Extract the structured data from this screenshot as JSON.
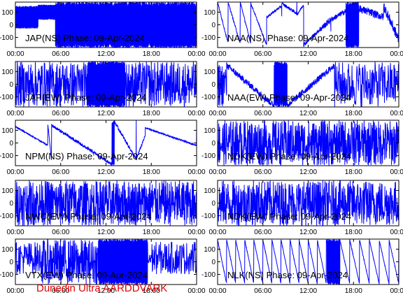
{
  "footer": {
    "credit": "Dunedin Ultra AARDDVARK"
  },
  "colors": {
    "trace": "#0000ff",
    "frame": "#000000",
    "caption": "#000000",
    "credit": "#e00000",
    "background": "#ffffff"
  },
  "x_ticks": [
    "00:00",
    "06:00",
    "12:00",
    "18:00",
    "00:00"
  ],
  "y_ticks": [
    100,
    0,
    -100
  ],
  "chart_data": [
    {
      "type": "line",
      "caption": "JAP(NS) Phase: 09-Apr-2024",
      "xlim": [
        0,
        24
      ],
      "ylim": [
        -180,
        180
      ],
      "grid": false,
      "series_color": "#0000ff",
      "segments": [
        {
          "from": 0.0,
          "to": 3.0,
          "pattern": "dense",
          "level": 60,
          "amp": 90
        },
        {
          "from": 3.0,
          "to": 5.3,
          "pattern": "dense",
          "level": 100,
          "amp": 60
        },
        {
          "from": 5.3,
          "to": 24.0,
          "pattern": "dense",
          "level": 0,
          "amp": 180
        }
      ]
    },
    {
      "type": "line",
      "caption": "NAA(NS) Phase: 09-Apr-2024",
      "xlim": [
        0,
        24
      ],
      "ylim": [
        -180,
        180
      ],
      "grid": false,
      "series_color": "#0000ff",
      "segments": [
        {
          "from": 0.0,
          "to": 1.4,
          "pattern": "ramp",
          "start": 180,
          "end": -150,
          "period": 1.4,
          "amp": 8
        },
        {
          "from": 1.4,
          "to": 3.0,
          "pattern": "ramp",
          "start": 180,
          "end": -150,
          "period": 1.6,
          "amp": 8
        },
        {
          "from": 3.0,
          "to": 4.4,
          "pattern": "ramp",
          "start": 180,
          "end": -150,
          "period": 1.4,
          "amp": 8
        },
        {
          "from": 4.4,
          "to": 6.5,
          "pattern": "ramp",
          "start": 170,
          "end": -160,
          "period": 2.1,
          "amp": 8
        },
        {
          "from": 6.5,
          "to": 8.5,
          "pattern": "ramp",
          "start": 60,
          "end": 150,
          "period": 2.0,
          "amp": 10
        },
        {
          "from": 8.5,
          "to": 10.5,
          "pattern": "ramp",
          "start": 170,
          "end": 90,
          "period": 2.0,
          "amp": 12
        },
        {
          "from": 10.5,
          "to": 11.4,
          "pattern": "ramp",
          "start": 80,
          "end": 160,
          "period": 0.9,
          "amp": 10
        },
        {
          "from": 11.4,
          "to": 13.5,
          "pattern": "ramp",
          "start": -160,
          "end": -40,
          "period": 2.1,
          "amp": 15
        },
        {
          "from": 13.5,
          "to": 15.0,
          "pattern": "ramp",
          "start": -40,
          "end": 40,
          "period": 1.5,
          "amp": 25
        },
        {
          "from": 15.0,
          "to": 17.0,
          "pattern": "ramp",
          "start": 40,
          "end": 110,
          "period": 2.0,
          "amp": 20
        },
        {
          "from": 17.0,
          "to": 18.7,
          "pattern": "dense",
          "level": 0,
          "amp": 180
        },
        {
          "from": 18.7,
          "to": 22.0,
          "pattern": "ramp",
          "start": 130,
          "end": 60,
          "period": 3.3,
          "amp": 30
        },
        {
          "from": 22.0,
          "to": 24.0,
          "pattern": "ramp",
          "start": 150,
          "end": -120,
          "period": 2.0,
          "amp": 40
        }
      ]
    },
    {
      "type": "line",
      "caption": "JAP(EW) Phase: 09-Apr-2024",
      "xlim": [
        0,
        24
      ],
      "ylim": [
        -180,
        180
      ],
      "grid": false,
      "series_color": "#0000ff",
      "segments": [
        {
          "from": 0.0,
          "to": 9.6,
          "pattern": "spiky",
          "level": 0,
          "amp": 180,
          "density": 28
        },
        {
          "from": 9.6,
          "to": 14.5,
          "pattern": "dense",
          "level": 0,
          "amp": 180
        },
        {
          "from": 14.5,
          "to": 24.0,
          "pattern": "spiky",
          "level": 0,
          "amp": 180,
          "density": 28
        }
      ]
    },
    {
      "type": "line",
      "caption": "NAA(EW) Phase: 09-Apr-2024",
      "xlim": [
        0,
        24
      ],
      "ylim": [
        -180,
        180
      ],
      "grid": false,
      "series_color": "#0000ff",
      "segments": [
        {
          "from": 0.0,
          "to": 1.2,
          "pattern": "spiky",
          "level": 0,
          "amp": 180,
          "density": 20
        },
        {
          "from": 1.2,
          "to": 7.5,
          "pattern": "ramp",
          "start": 150,
          "end": -170,
          "period": 6.3,
          "amp": 25
        },
        {
          "from": 7.5,
          "to": 9.2,
          "pattern": "dense",
          "level": 0,
          "amp": 180
        },
        {
          "from": 9.2,
          "to": 15.5,
          "pattern": "ramp",
          "start": -170,
          "end": 150,
          "period": 6.3,
          "amp": 25
        },
        {
          "from": 15.5,
          "to": 24.0,
          "pattern": "spiky",
          "level": 0,
          "amp": 180,
          "density": 20
        }
      ]
    },
    {
      "type": "line",
      "caption": "NPM(NS) Phase: 09-Apr-2024",
      "xlim": [
        0,
        24
      ],
      "ylim": [
        -180,
        180
      ],
      "grid": false,
      "series_color": "#0000ff",
      "segments": [
        {
          "from": 0.0,
          "to": 4.3,
          "pattern": "ramp",
          "start": 130,
          "end": -20,
          "period": 4.3,
          "amp": 6
        },
        {
          "from": 4.3,
          "to": 4.8,
          "pattern": "ramp",
          "start": 150,
          "end": -150,
          "period": 0.5,
          "amp": 6
        },
        {
          "from": 4.8,
          "to": 12.8,
          "pattern": "ramp",
          "start": 140,
          "end": -170,
          "period": 8.0,
          "amp": 12
        },
        {
          "from": 12.8,
          "to": 13.1,
          "pattern": "dense",
          "level": 0,
          "amp": 180
        },
        {
          "from": 13.1,
          "to": 16.0,
          "pattern": "ramp",
          "start": 170,
          "end": -130,
          "period": 2.9,
          "amp": 12
        },
        {
          "from": 16.0,
          "to": 17.2,
          "pattern": "ramp",
          "start": -130,
          "end": 60,
          "period": 1.2,
          "amp": 10
        },
        {
          "from": 17.2,
          "to": 24.0,
          "pattern": "ramp",
          "start": 120,
          "end": -20,
          "period": 6.8,
          "amp": 6
        }
      ]
    },
    {
      "type": "line",
      "caption": "NDK(EW) Phase: 09-Apr-2024",
      "xlim": [
        0,
        24
      ],
      "ylim": [
        -180,
        180
      ],
      "grid": false,
      "series_color": "#0000ff",
      "segments": [
        {
          "from": 0.0,
          "to": 24.0,
          "pattern": "spiky",
          "level": 0,
          "amp": 180,
          "density": 32
        }
      ]
    },
    {
      "type": "line",
      "caption": "NWC(EW) Phase: 09-Apr-2024",
      "xlim": [
        0,
        24
      ],
      "ylim": [
        -180,
        180
      ],
      "grid": false,
      "series_color": "#0000ff",
      "segments": [
        {
          "from": 0.0,
          "to": 24.0,
          "pattern": "spiky",
          "level": 0,
          "amp": 180,
          "density": 34
        }
      ]
    },
    {
      "type": "line",
      "caption": "NDK(EW) Phase: 09-Apr-2024",
      "xlim": [
        0,
        24
      ],
      "ylim": [
        -180,
        180
      ],
      "grid": false,
      "series_color": "#0000ff",
      "segments": [
        {
          "from": 0.0,
          "to": 24.0,
          "pattern": "spiky",
          "level": 0,
          "amp": 180,
          "density": 32
        }
      ]
    },
    {
      "type": "line",
      "caption": "VTX(EW) Phase: 09-Apr-2024",
      "xlim": [
        0,
        24
      ],
      "ylim": [
        -180,
        180
      ],
      "grid": false,
      "series_color": "#0000ff",
      "segments": [
        {
          "from": 0.0,
          "to": 3.5,
          "pattern": "spiky",
          "level": 30,
          "amp": 130,
          "density": 22
        },
        {
          "from": 3.5,
          "to": 11.0,
          "pattern": "spiky",
          "level": 0,
          "amp": 180,
          "density": 30
        },
        {
          "from": 11.0,
          "to": 17.5,
          "pattern": "dense",
          "level": 0,
          "amp": 180
        },
        {
          "from": 17.5,
          "to": 24.0,
          "pattern": "spiky",
          "level": 30,
          "amp": 130,
          "density": 22
        }
      ]
    },
    {
      "type": "line",
      "caption": "NLK(NS) Phase: 09-Apr-2024",
      "xlim": [
        0,
        24
      ],
      "ylim": [
        -180,
        180
      ],
      "grid": false,
      "series_color": "#0000ff",
      "segments": [
        {
          "from": 0.0,
          "to": 14.5,
          "pattern": "ramp",
          "start": 175,
          "end": -175,
          "period": 1.2,
          "amp": 5
        },
        {
          "from": 14.5,
          "to": 16.2,
          "pattern": "dense",
          "level": 0,
          "amp": 180
        },
        {
          "from": 16.2,
          "to": 24.0,
          "pattern": "ramp",
          "start": 175,
          "end": -175,
          "period": 1.3,
          "amp": 5
        }
      ]
    }
  ]
}
